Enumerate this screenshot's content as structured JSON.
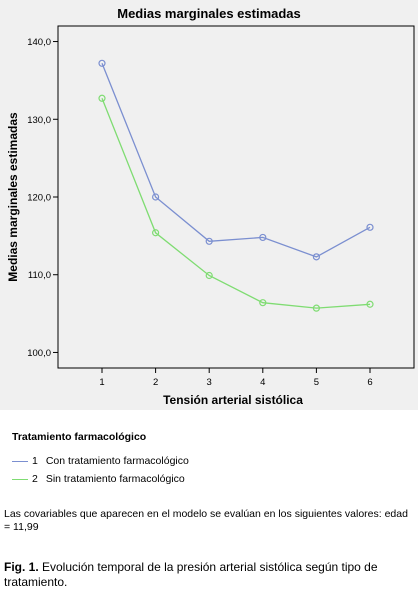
{
  "chart_data": {
    "type": "line",
    "title": "Medias marginales estimadas",
    "xlabel": "Tensión arterial sistólica",
    "ylabel": "Medias marginales estimadas",
    "categories": [
      "1",
      "2",
      "3",
      "4",
      "5",
      "6"
    ],
    "ylim": [
      98,
      142
    ],
    "yticks": [
      "100,0",
      "110,0",
      "120,0",
      "130,0",
      "140,0"
    ],
    "ytick_values": [
      100,
      110,
      120,
      130,
      140
    ],
    "grid": false,
    "series": [
      {
        "name": "Con tratamiento farmacológico",
        "color": "#7b8fd0",
        "values": [
          137.2,
          120.0,
          114.3,
          114.8,
          112.3,
          116.1
        ]
      },
      {
        "name": "Sin tratamiento farmacológico",
        "color": "#7fdc72",
        "values": [
          132.7,
          115.4,
          109.9,
          106.4,
          105.7,
          106.2
        ]
      }
    ]
  },
  "legend": {
    "title": "Tratamiento farmacológico",
    "items": [
      {
        "num": "1",
        "label": "Con tratamiento farmacológico",
        "color": "#7b8fd0"
      },
      {
        "num": "2",
        "label": "Sin tratamiento farmacológico",
        "color": "#7fdc72"
      }
    ]
  },
  "note": "Las covariables que aparecen en el modelo se evalúan en los siguientes valores: edad = 11,99",
  "caption": {
    "label": "Fig. 1.",
    "text": " Evolución temporal de la presión arterial sistólica según tipo de tratamiento."
  }
}
